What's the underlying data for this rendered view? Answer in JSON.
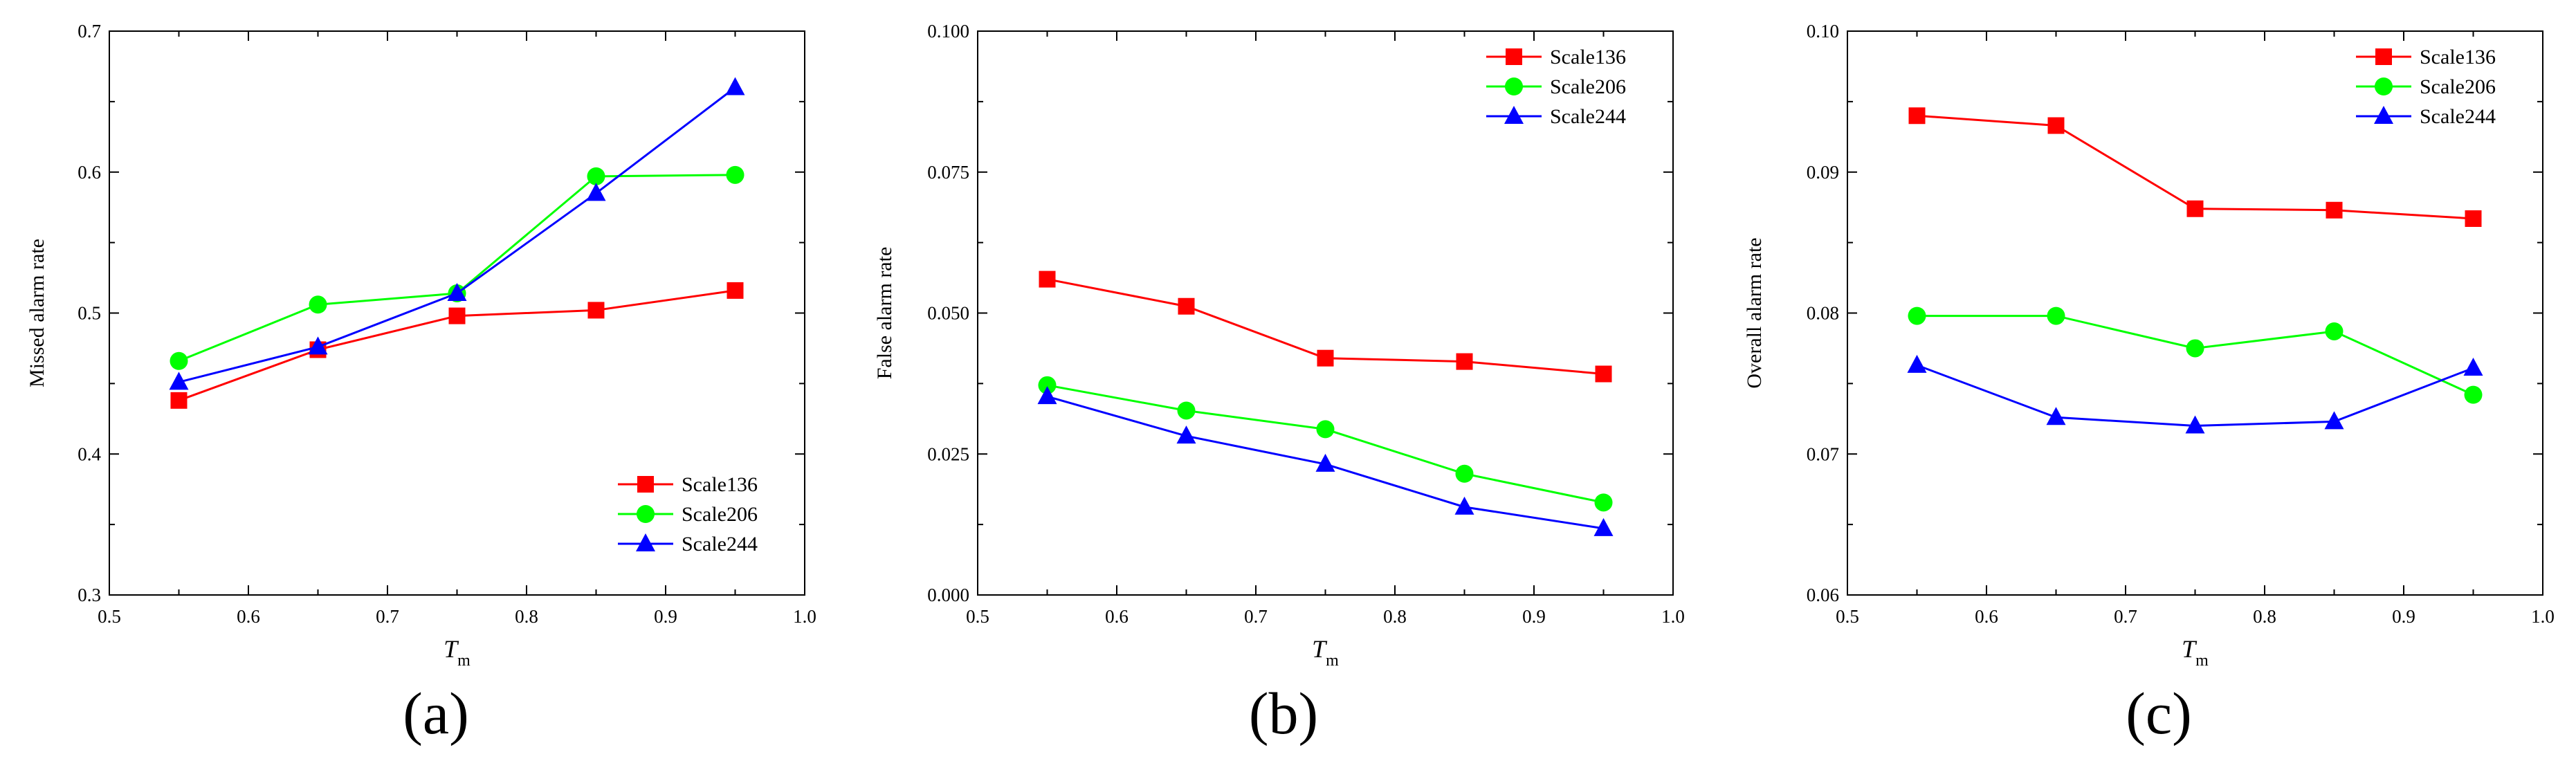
{
  "chart_data": [
    {
      "type": "line",
      "panel_label": "(a)",
      "title": "",
      "xlabel": "T",
      "xlabel_subscript": "m",
      "ylabel": "Missed alarm rate",
      "xlim": [
        0.5,
        1.0
      ],
      "ylim": [
        0.3,
        0.7
      ],
      "xticks": [
        0.5,
        0.6,
        0.7,
        0.8,
        0.9,
        1.0
      ],
      "yticks": [
        0.3,
        0.4,
        0.5,
        0.6,
        0.7
      ],
      "xtick_labels": [
        "0.5",
        "0.6",
        "0.7",
        "0.8",
        "0.9",
        "1.0"
      ],
      "ytick_labels": [
        "0.3",
        "0.4",
        "0.5",
        "0.6",
        "0.7"
      ],
      "legend_position": "bottom-right",
      "x": [
        0.55,
        0.65,
        0.75,
        0.85,
        0.95
      ],
      "series": [
        {
          "name": "Scale136",
          "color": "#ff0000",
          "marker": "square",
          "values": [
            0.438,
            0.474,
            0.498,
            0.502,
            0.516
          ]
        },
        {
          "name": "Scale206",
          "color": "#00ff00",
          "marker": "circle",
          "values": [
            0.466,
            0.506,
            0.514,
            0.597,
            0.598
          ]
        },
        {
          "name": "Scale244",
          "color": "#0000ff",
          "marker": "triangle",
          "values": [
            0.451,
            0.476,
            0.514,
            0.585,
            0.66
          ]
        }
      ]
    },
    {
      "type": "line",
      "panel_label": "(b)",
      "title": "",
      "xlabel": "T",
      "xlabel_subscript": "m",
      "ylabel": "False alarm rate",
      "xlim": [
        0.5,
        1.0
      ],
      "ylim": [
        0.0,
        0.1
      ],
      "xticks": [
        0.5,
        0.6,
        0.7,
        0.8,
        0.9,
        1.0
      ],
      "yticks": [
        0.0,
        0.025,
        0.05,
        0.075,
        0.1
      ],
      "xtick_labels": [
        "0.5",
        "0.6",
        "0.7",
        "0.8",
        "0.9",
        "1.0"
      ],
      "ytick_labels": [
        "0.000",
        "0.025",
        "0.050",
        "0.075",
        "0.100"
      ],
      "legend_position": "top-right",
      "x": [
        0.55,
        0.65,
        0.75,
        0.85,
        0.95
      ],
      "series": [
        {
          "name": "Scale136",
          "color": "#ff0000",
          "marker": "square",
          "values": [
            0.056,
            0.0512,
            0.042,
            0.0414,
            0.0392
          ]
        },
        {
          "name": "Scale206",
          "color": "#00ff00",
          "marker": "circle",
          "values": [
            0.0372,
            0.0327,
            0.0294,
            0.0215,
            0.0164
          ]
        },
        {
          "name": "Scale244",
          "color": "#0000ff",
          "marker": "triangle",
          "values": [
            0.0352,
            0.0282,
            0.0232,
            0.0156,
            0.0118
          ]
        }
      ]
    },
    {
      "type": "line",
      "panel_label": "(c)",
      "title": "",
      "xlabel": "T",
      "xlabel_subscript": "m",
      "ylabel": "Overall alarm rate",
      "xlim": [
        0.5,
        1.0
      ],
      "ylim": [
        0.06,
        0.1
      ],
      "xticks": [
        0.5,
        0.6,
        0.7,
        0.8,
        0.9,
        1.0
      ],
      "yticks": [
        0.06,
        0.07,
        0.08,
        0.09,
        0.1
      ],
      "xtick_labels": [
        "0.5",
        "0.6",
        "0.7",
        "0.8",
        "0.9",
        "1.0"
      ],
      "ytick_labels": [
        "0.06",
        "0.07",
        "0.08",
        "0.09",
        "0.10"
      ],
      "legend_position": "top-right",
      "x": [
        0.55,
        0.65,
        0.75,
        0.85,
        0.95
      ],
      "series": [
        {
          "name": "Scale136",
          "color": "#ff0000",
          "marker": "square",
          "values": [
            0.094,
            0.0933,
            0.0874,
            0.0873,
            0.0867
          ]
        },
        {
          "name": "Scale206",
          "color": "#00ff00",
          "marker": "circle",
          "values": [
            0.0798,
            0.0798,
            0.0775,
            0.0787,
            0.0742
          ]
        },
        {
          "name": "Scale244",
          "color": "#0000ff",
          "marker": "triangle",
          "values": [
            0.0763,
            0.0726,
            0.072,
            0.0723,
            0.0761
          ]
        }
      ]
    }
  ]
}
